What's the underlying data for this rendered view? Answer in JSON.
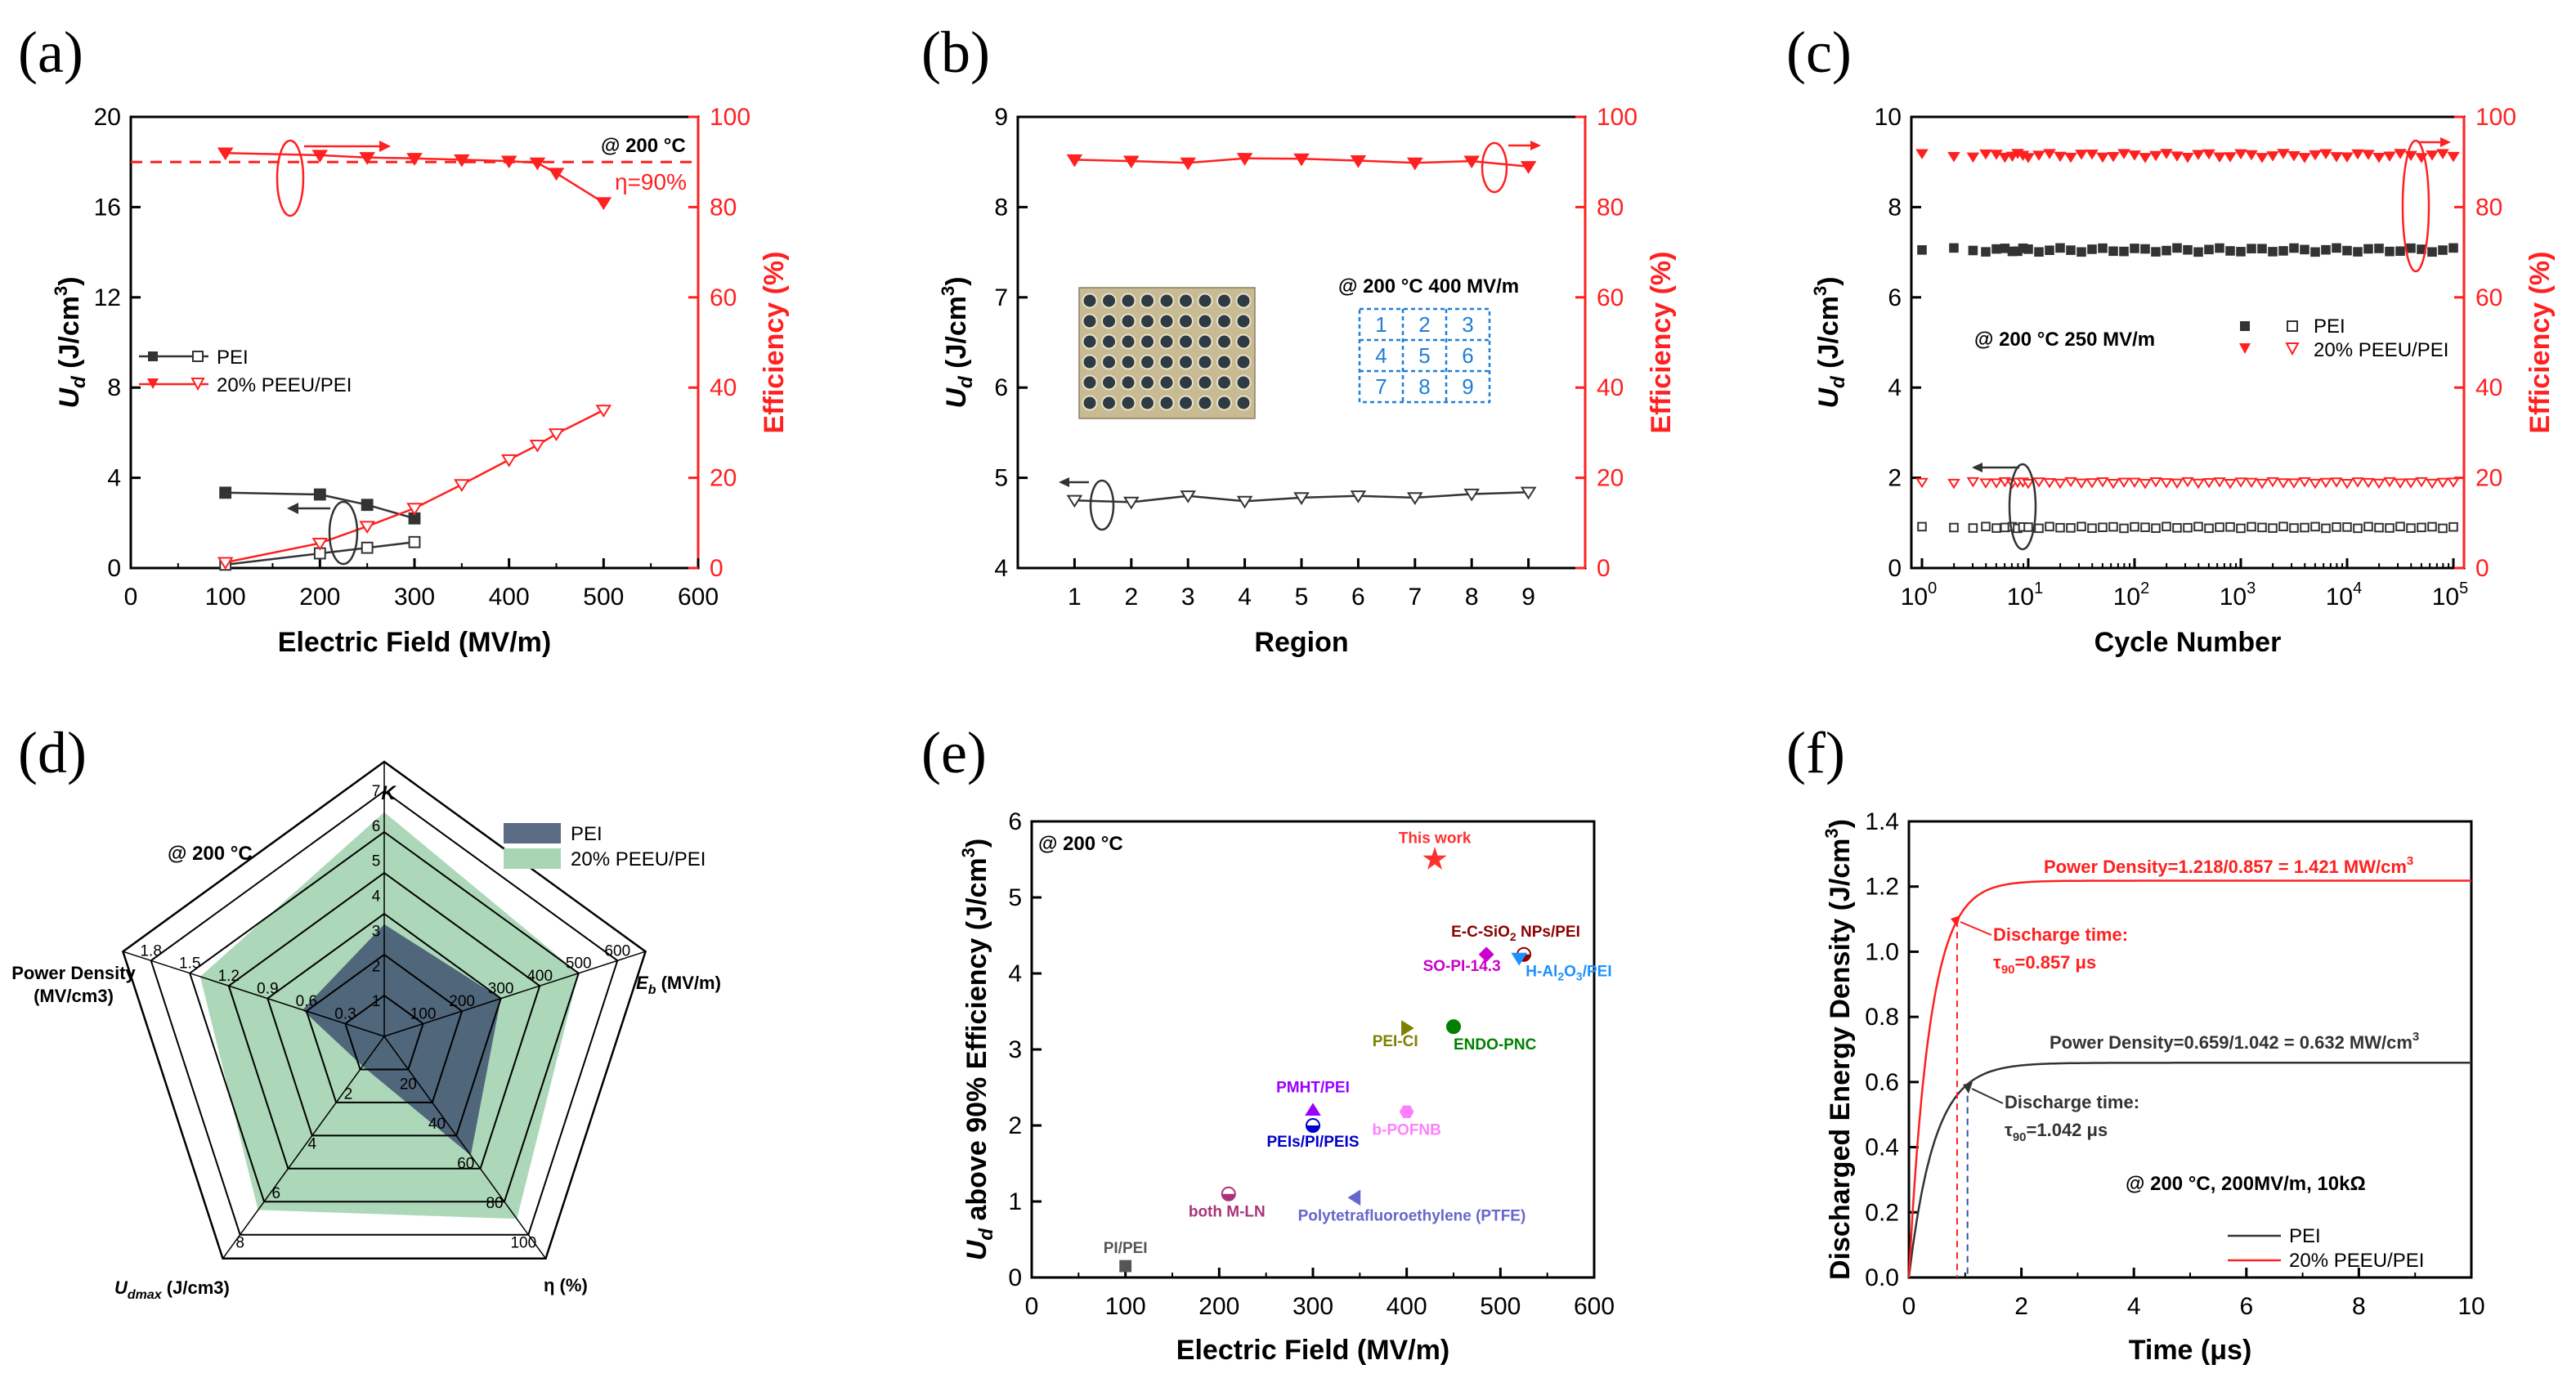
{
  "colors": {
    "black": "#333333",
    "red": "#ff2020",
    "radar_pei": "#3f5270",
    "radar_peeu": "#a8d5b4"
  },
  "panel_labels": [
    "(a)",
    "(b)",
    "(c)",
    "(d)",
    "(e)",
    "(f)"
  ],
  "chart_data": [
    {
      "id": "a",
      "type": "line",
      "xlabel": "Electric Field (MV/m)",
      "ylabel": "U",
      "ylabel_sub": "d",
      "ylabel_units": " (J/cm",
      "ylabel_sup": "3",
      "y2label": "Efficiency (%)",
      "xlim": [
        0,
        600
      ],
      "xticks": [
        0,
        100,
        200,
        300,
        400,
        500,
        600
      ],
      "ylim": [
        0,
        20
      ],
      "yticks": [
        0,
        4,
        8,
        12,
        16,
        20
      ],
      "y2lim": [
        0,
        100
      ],
      "y2ticks": [
        0,
        20,
        40,
        60,
        80,
        100
      ],
      "annotation": "@ 200 °C",
      "ref_line_label": "η=90%",
      "ref_line_value": 90,
      "series": [
        {
          "name": "PEI",
          "x": [
            100,
            200,
            250,
            300
          ],
          "y": [
            16.7,
            16.3,
            14.0,
            11.0
          ],
          "axis": "y2",
          "color": "#333333",
          "marker": "square-filled"
        },
        {
          "name": "PEI",
          "x": [
            100,
            200,
            250,
            300
          ],
          "y": [
            0.15,
            0.65,
            0.9,
            1.15
          ],
          "axis": "y",
          "color": "#333333",
          "marker": "square-open"
        },
        {
          "name": "20% PEEU/PEI",
          "x": [
            100,
            200,
            250,
            300,
            350,
            400,
            430,
            450,
            500
          ],
          "y": [
            92,
            91.5,
            91,
            90.8,
            90.5,
            90.2,
            89.8,
            87.5,
            81
          ],
          "axis": "y2",
          "color": "#ff2020",
          "marker": "tri-down-filled"
        },
        {
          "name": "20% PEEU/PEI",
          "x": [
            100,
            200,
            250,
            300,
            350,
            400,
            430,
            450,
            500
          ],
          "y": [
            0.25,
            1.1,
            1.85,
            2.65,
            3.7,
            4.8,
            5.45,
            5.95,
            7.0
          ],
          "axis": "y",
          "color": "#ff2020",
          "marker": "tri-down-open"
        }
      ],
      "legend": [
        "PEI",
        "20% PEEU/PEI"
      ]
    },
    {
      "id": "b",
      "type": "line",
      "xlabel": "Region",
      "ylabel": "U",
      "ylabel_sub": "d",
      "ylabel_units": " (J/cm",
      "ylabel_sup": "3",
      "y2label": "Efficiency (%)",
      "xlim": [
        0,
        10
      ],
      "xticks": [
        1,
        2,
        3,
        4,
        5,
        6,
        7,
        8,
        9
      ],
      "ylim": [
        4,
        9
      ],
      "yticks": [
        4,
        5,
        6,
        7,
        8,
        9
      ],
      "y2lim": [
        0,
        100
      ],
      "y2ticks": [
        0,
        20,
        40,
        60,
        80,
        100
      ],
      "annotation": "@ 200 °C 400 MV/m",
      "grid_numbers": [
        "1",
        "2",
        "3",
        "4",
        "5",
        "6",
        "7",
        "8",
        "9"
      ],
      "series": [
        {
          "name": "Efficiency",
          "x": [
            1,
            2,
            3,
            4,
            5,
            6,
            7,
            8,
            9
          ],
          "y": [
            90.5,
            90.2,
            89.8,
            90.8,
            90.7,
            90.3,
            89.8,
            90.2,
            89.0
          ],
          "axis": "y2",
          "color": "#ff2020",
          "marker": "tri-down-filled"
        },
        {
          "name": "Ud",
          "x": [
            1,
            2,
            3,
            4,
            5,
            6,
            7,
            8,
            9
          ],
          "y": [
            4.75,
            4.73,
            4.8,
            4.74,
            4.78,
            4.8,
            4.78,
            4.82,
            4.84
          ],
          "axis": "y",
          "color": "#333333",
          "marker": "tri-down-open"
        }
      ]
    },
    {
      "id": "c",
      "type": "scatter",
      "xlabel": "Cycle Number",
      "ylabel": "U",
      "ylabel_sub": "d",
      "ylabel_units": " (J/cm",
      "ylabel_sup": "3",
      "y2label": "Efficiency (%)",
      "xscale": "log",
      "xlim_exp": [
        -0.1,
        5.1
      ],
      "xticks": [
        "10",
        "10",
        "10",
        "10",
        "10",
        "10"
      ],
      "xtick_exps": [
        "0",
        "1",
        "2",
        "3",
        "4",
        "5"
      ],
      "ylim": [
        0,
        10
      ],
      "yticks": [
        0,
        2,
        4,
        6,
        8,
        10
      ],
      "y2lim": [
        0,
        100
      ],
      "y2ticks": [
        0,
        20,
        40,
        60,
        80,
        100
      ],
      "annotation": "@ 200 °C 250 MV/m",
      "legend": [
        "PEI",
        "20% PEEU/PEI"
      ],
      "series": [
        {
          "name": "PEI efficiency",
          "y_const": 70.5,
          "axis": "y2",
          "color": "#333333",
          "marker": "square-filled"
        },
        {
          "name": "PEI Ud",
          "y_const": 0.9,
          "axis": "y",
          "color": "#333333",
          "marker": "square-open"
        },
        {
          "name": "20% PEEU/PEI efficiency",
          "y_const": 91.5,
          "axis": "y2",
          "color": "#ff2020",
          "marker": "tri-down-filled"
        },
        {
          "name": "20% PEEU/PEI Ud",
          "y_const": 1.9,
          "axis": "y",
          "color": "#ff2020",
          "marker": "tri-down-open"
        }
      ]
    },
    {
      "id": "d",
      "type": "radar",
      "annotation": "@ 200 °C",
      "axes": [
        {
          "label": "K",
          "max": 7,
          "ticks": [
            "1",
            "2",
            "3",
            "4",
            "5",
            "6",
            "7"
          ]
        },
        {
          "label": "E",
          "label_sub": "b",
          "label_units": " (MV/m)",
          "max": 600,
          "ticks": [
            "100",
            "200",
            "300",
            "400",
            "500",
            "600"
          ]
        },
        {
          "label": "η (%)",
          "max": 100,
          "ticks": [
            "20",
            "40",
            "60",
            "80",
            "100"
          ]
        },
        {
          "label": "U",
          "label_sub": "dmax",
          "label_units": " (J/cm3)",
          "max": 8,
          "ticks": [
            "2",
            "4",
            "6",
            "8"
          ]
        },
        {
          "label": "Power Density",
          "label2": "(MV/cm3)",
          "max": 1.8,
          "ticks": [
            "0.3",
            "0.6",
            "0.9",
            "1.2",
            "1.5",
            "1.8"
          ]
        }
      ],
      "legend": [
        "PEI",
        "20% PEEU/PEI"
      ],
      "series": [
        {
          "name": "PEI",
          "values": [
            3.2,
            300,
            60,
            1.2,
            0.63
          ]
        },
        {
          "name": "20% PEEU/PEI",
          "values": [
            6.4,
            500,
            92,
            7.0,
            1.42
          ]
        }
      ]
    },
    {
      "id": "e",
      "type": "scatter",
      "xlabel": "Electric Field (MV/m)",
      "ylabel": "U",
      "ylabel_sub": "d",
      "ylabel_rest": " above 90% Efficiency (J/cm",
      "ylabel_sup": "3",
      "xlim": [
        0,
        600
      ],
      "xticks": [
        0,
        100,
        200,
        300,
        400,
        500,
        600
      ],
      "ylim": [
        0,
        6
      ],
      "yticks": [
        0,
        1,
        2,
        3,
        4,
        5,
        6
      ],
      "annotation": "@ 200 °C",
      "points": [
        {
          "label": "This work",
          "x": 430,
          "y": 5.5,
          "color": "#ff3030",
          "marker": "star"
        },
        {
          "label": "E-C-SiO",
          "label_sub": "2",
          "label_rest": " NPs/PEI",
          "x": 525,
          "y": 4.25,
          "color": "#8b0000",
          "marker": "circle-half"
        },
        {
          "label": "SO-PI-14.3",
          "x": 485,
          "y": 4.25,
          "color": "#cc00cc",
          "marker": "diamond"
        },
        {
          "label": "H-Al",
          "label_sub": "2",
          "label_mid": "O",
          "label_sub2": "3",
          "label_rest": "/PEI",
          "x": 520,
          "y": 4.2,
          "color": "#1e90ff",
          "marker": "tri-down"
        },
        {
          "label": "PEI-CI",
          "x": 400,
          "y": 3.28,
          "color": "#808000",
          "marker": "tri-right"
        },
        {
          "label": "ENDO-PNC",
          "x": 450,
          "y": 3.3,
          "color": "#008000",
          "marker": "circle"
        },
        {
          "label": "PMHT/PEI",
          "x": 300,
          "y": 2.2,
          "color": "#9900ff",
          "marker": "tri-up"
        },
        {
          "label": "PEIs/PI/PEIS",
          "x": 300,
          "y": 2.0,
          "color": "#0000cc",
          "marker": "circle-half"
        },
        {
          "label": "b-POFNB",
          "x": 400,
          "y": 2.18,
          "color": "#ff80ff",
          "marker": "hexagon"
        },
        {
          "label": "both M-LN",
          "x": 210,
          "y": 1.1,
          "color": "#aa3377",
          "marker": "circle-half"
        },
        {
          "label": "Polytetrafluoroethylene (PTFE)",
          "x": 345,
          "y": 1.05,
          "color": "#6666cc",
          "marker": "tri-left"
        },
        {
          "label": "PI/PEI",
          "x": 100,
          "y": 0.15,
          "color": "#555555",
          "marker": "square"
        }
      ]
    },
    {
      "id": "f",
      "type": "line",
      "xlabel": "Time (μs)",
      "ylabel": "Discharged Energy Density (J/cm",
      "ylabel_sup": "3",
      "xlim": [
        0,
        10
      ],
      "xticks": [
        0,
        2,
        4,
        6,
        8,
        10
      ],
      "ylim": [
        0,
        1.4
      ],
      "yticks": [
        "0.0",
        "0.2",
        "0.4",
        "0.6",
        "0.8",
        "1.0",
        "1.2",
        "1.4"
      ],
      "annotation": "@ 200 °C, 200MV/m, 10kΩ",
      "legend": [
        "PEI",
        "20% PEEU/PEI"
      ],
      "series": [
        {
          "name": "PEI",
          "plateau": 0.659,
          "tau90": 1.042,
          "color": "#333333"
        },
        {
          "name": "20% PEEU/PEI",
          "plateau": 1.218,
          "tau90": 0.857,
          "color": "#ff2020"
        }
      ],
      "labels": {
        "red_power": "Power Density=1.218/0.857 = 1.421 MW/cm",
        "red_power_sup": "3",
        "black_power": "Power Density=0.659/1.042 = 0.632 MW/cm",
        "black_power_sup": "3",
        "red_dt": "Discharge time:",
        "red_tau": "τ",
        "red_tau_sub": "90",
        "red_tau_val": "=0.857 μs",
        "black_dt": "Discharge time:",
        "black_tau": "τ",
        "black_tau_sub": "90",
        "black_tau_val": "=1.042 μs"
      }
    }
  ]
}
